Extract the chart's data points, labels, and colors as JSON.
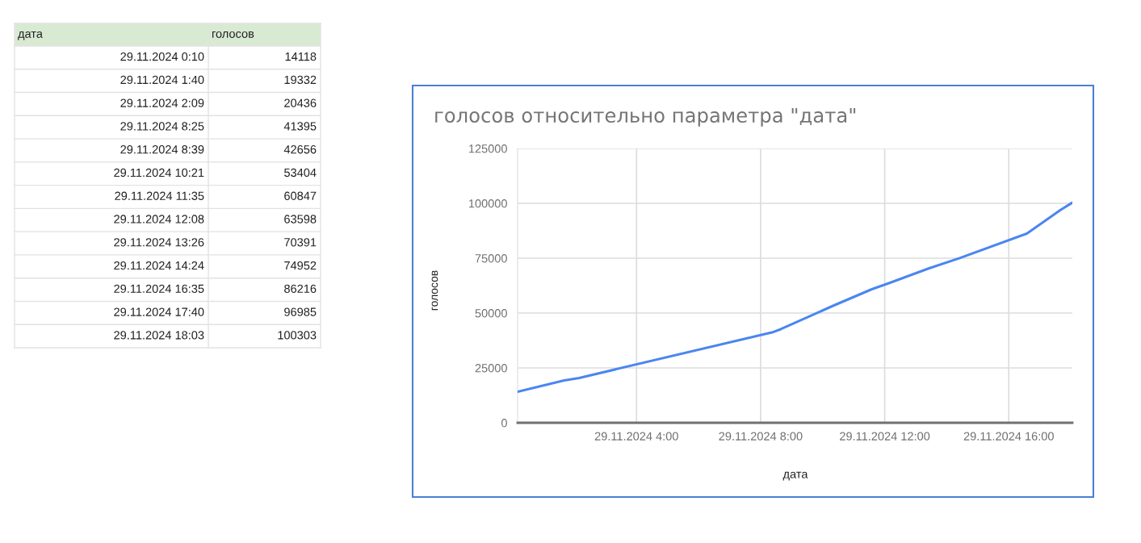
{
  "chart_data": [
    {
      "type": "other",
      "categories": [
        "дата",
        "голосов"
      ],
      "annotations": [
        "29.11.2024 0:10",
        "14118",
        "29.11.2024 1:40",
        "19332",
        "29.11.2024 2:09",
        "20436",
        "29.11.2024 8:25",
        "41395",
        "29.11.2024 8:39",
        "42656",
        "29.11.2024 10:21",
        "53404",
        "29.11.2024 11:35",
        "60847",
        "29.11.2024 12:08",
        "63598",
        "29.11.2024 13:26",
        "70391",
        "29.11.2024 14:24",
        "74952",
        "29.11.2024 16:35",
        "86216",
        "29.11.2024 17:40",
        "96985",
        "29.11.2024 18:03",
        "100303"
      ]
    },
    {
      "type": "line",
      "title": "голосов относительно параметра \"дата\"",
      "xlabel": "дата",
      "ylabel": "голосов",
      "x": [
        "2024-11-29T00:10",
        "2024-11-29T01:40",
        "2024-11-29T02:09",
        "2024-11-29T08:25",
        "2024-11-29T08:39",
        "2024-11-29T10:21",
        "2024-11-29T11:35",
        "2024-11-29T12:08",
        "2024-11-29T13:26",
        "2024-11-29T14:24",
        "2024-11-29T16:35",
        "2024-11-29T17:40",
        "2024-11-29T18:03"
      ],
      "series": [
        {
          "color": "#4a86f0",
          "values": [
            14118,
            19332,
            20436,
            41395,
            42656,
            53404,
            60847,
            63598,
            70391,
            74952,
            86216,
            96985,
            100303
          ]
        }
      ],
      "xlim": [
        "2024-11-29T00:10",
        "2024-11-29T18:03"
      ],
      "xticks": [
        {
          "value": "2024-11-29T04:00",
          "label": "29.11.2024 4:00"
        },
        {
          "value": "2024-11-29T08:00",
          "label": "29.11.2024 8:00"
        },
        {
          "value": "2024-11-29T12:00",
          "label": "29.11.2024 12:00"
        },
        {
          "value": "2024-11-29T16:00",
          "label": "29.11.2024 16:00"
        }
      ],
      "ylim": [
        0,
        125000
      ],
      "yticks": [
        0,
        25000,
        50000,
        75000,
        100000,
        125000
      ],
      "grid": true,
      "marker": "none",
      "line_style": "solid"
    }
  ]
}
